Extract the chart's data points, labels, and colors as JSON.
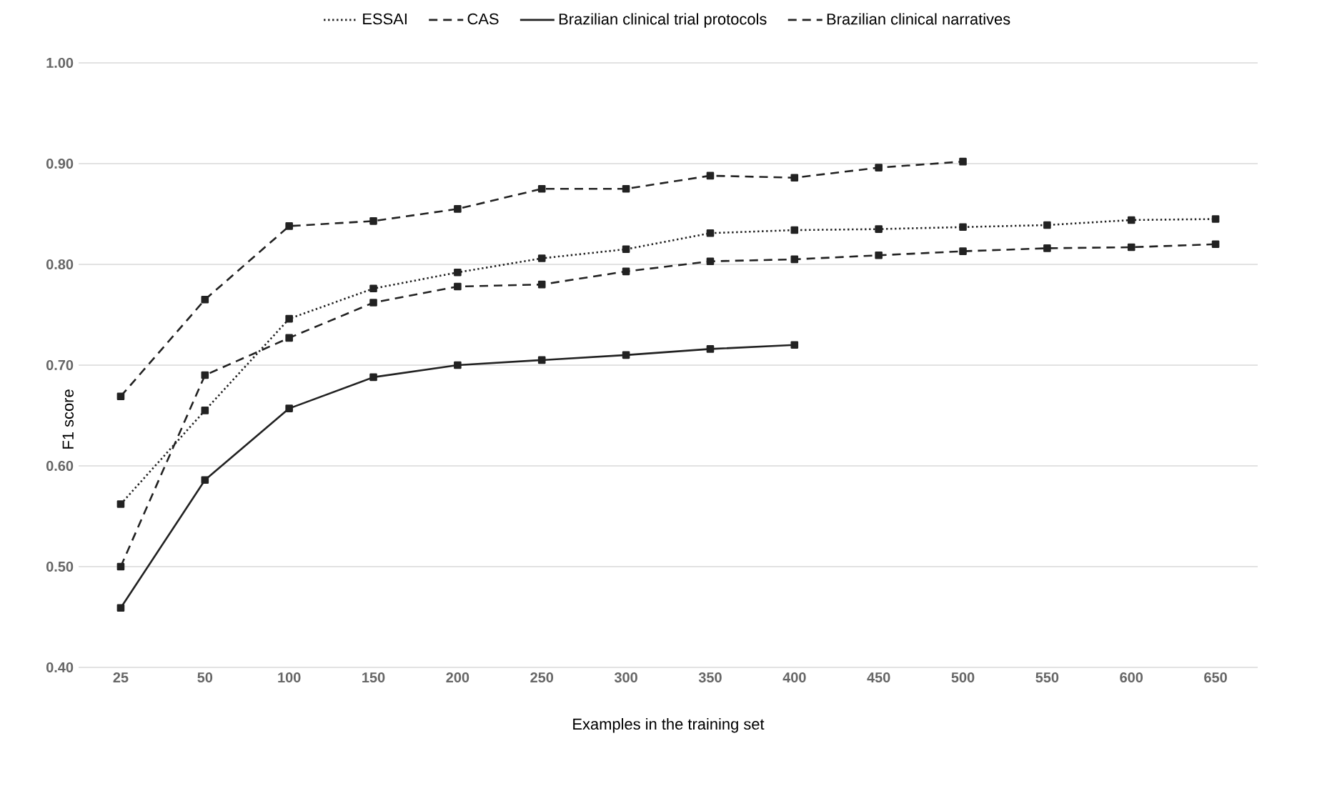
{
  "chart_data": {
    "type": "line",
    "xlabel": "Examples in the training set",
    "ylabel": "F1 score",
    "categories": [
      "25",
      "50",
      "100",
      "150",
      "200",
      "250",
      "300",
      "350",
      "400",
      "450",
      "500",
      "550",
      "600",
      "650"
    ],
    "series": [
      {
        "name": "ESSAI",
        "color": "#222222",
        "line_style": "dotted",
        "values": [
          0.562,
          0.655,
          0.746,
          0.776,
          0.792,
          0.806,
          0.815,
          0.831,
          0.834,
          0.835,
          0.837,
          0.839,
          0.844,
          0.845
        ]
      },
      {
        "name": "CAS",
        "color": "#222222",
        "line_style": "dashed",
        "values": [
          0.669,
          0.765,
          0.838,
          0.843,
          0.855,
          0.875,
          0.875,
          0.888,
          0.886,
          0.896,
          0.902,
          null,
          null,
          null
        ]
      },
      {
        "name": "Brazilian clinical trial protocols",
        "color": "#222222",
        "line_style": "solid",
        "values": [
          0.459,
          0.586,
          0.657,
          0.688,
          0.7,
          0.705,
          0.71,
          0.716,
          0.72,
          null,
          null,
          null,
          null,
          null
        ]
      },
      {
        "name": "Brazilian clinical narratives",
        "color": "#222222",
        "line_style": "dashed",
        "values": [
          0.5,
          0.69,
          0.727,
          0.762,
          0.778,
          0.78,
          0.793,
          0.803,
          0.805,
          0.809,
          0.813,
          0.816,
          0.817,
          0.82
        ]
      }
    ],
    "ylim": [
      0.4,
      1.0
    ],
    "yticks": [
      {
        "value": 0.4,
        "label": "0.40"
      },
      {
        "value": 0.5,
        "label": "0.50"
      },
      {
        "value": 0.6,
        "label": "0.60"
      },
      {
        "value": 0.7,
        "label": "0.70"
      },
      {
        "value": 0.8,
        "label": "0.80"
      },
      {
        "value": 0.9,
        "label": "0.90"
      },
      {
        "value": 1.0,
        "label": "1.00"
      }
    ],
    "grid": "y",
    "legend": "top",
    "marker": "square"
  }
}
